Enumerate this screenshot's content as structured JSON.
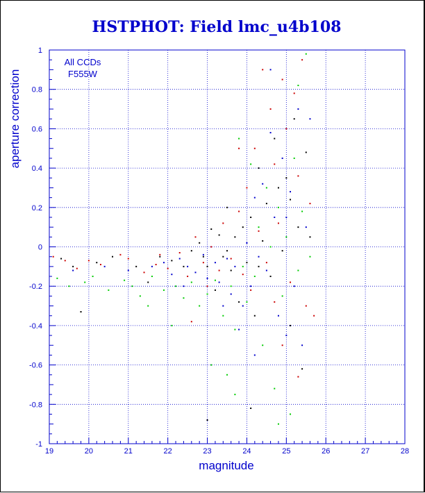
{
  "chart_data": {
    "type": "scatter",
    "title": "HSTPHOT: Field lmc_u4b108",
    "xlabel": "magnitude",
    "ylabel": "aperture correction",
    "xlim": [
      19,
      28
    ],
    "ylim": [
      -1,
      1
    ],
    "grid": true,
    "x_ticks": [
      "19",
      "20",
      "21",
      "22",
      "23",
      "24",
      "25",
      "26",
      "27",
      "28"
    ],
    "y_ticks": [
      "-1",
      "-0.8",
      "-0.6",
      "-0.4",
      "-0.2",
      "0",
      "0.2",
      "0.4",
      "0.6",
      "0.8",
      "1"
    ],
    "annotations": [
      "All CCDs",
      "F555W"
    ],
    "colors": {
      "axis": "#0000cc",
      "grid": "#0000cc",
      "points": [
        "#000000",
        "#cc0000",
        "#00cc00",
        "#0000cc"
      ]
    },
    "series": [
      {
        "color": "#000000",
        "points": [
          [
            19.3,
            -0.06
          ],
          [
            19.6,
            -0.1
          ],
          [
            19.8,
            -0.33
          ],
          [
            20.2,
            -0.08
          ],
          [
            20.6,
            -0.05
          ],
          [
            21.2,
            -0.1
          ],
          [
            21.5,
            -0.18
          ],
          [
            21.8,
            -0.05
          ],
          [
            22.1,
            -0.07
          ],
          [
            22.4,
            -0.1
          ],
          [
            22.6,
            -0.02
          ],
          [
            22.8,
            0.02
          ],
          [
            23.0,
            -0.1
          ],
          [
            23.1,
            0.09
          ],
          [
            23.2,
            -0.22
          ],
          [
            23.3,
            0.06
          ],
          [
            23.4,
            -0.05
          ],
          [
            23.5,
            0.2
          ],
          [
            23.6,
            -0.12
          ],
          [
            23.7,
            0.05
          ],
          [
            23.8,
            -0.28
          ],
          [
            23.9,
            0.1
          ],
          [
            24.0,
            -0.08
          ],
          [
            24.1,
            0.15
          ],
          [
            24.2,
            -0.35
          ],
          [
            24.3,
            0.4
          ],
          [
            24.4,
            0.03
          ],
          [
            24.5,
            0.22
          ],
          [
            24.6,
            -0.15
          ],
          [
            24.7,
            0.55
          ],
          [
            24.8,
            0.3
          ],
          [
            24.9,
            -0.02
          ],
          [
            25.0,
            0.35
          ],
          [
            25.1,
            -0.4
          ],
          [
            25.2,
            0.65
          ],
          [
            25.3,
            0.1
          ],
          [
            25.4,
            -0.62
          ],
          [
            25.5,
            0.48
          ],
          [
            23.0,
            -0.88
          ],
          [
            24.1,
            -0.82
          ],
          [
            22.9,
            -0.05
          ],
          [
            23.5,
            -0.02
          ],
          [
            24.3,
            -0.1
          ],
          [
            25.1,
            0.24
          ],
          [
            25.6,
            0.05
          ]
        ]
      },
      {
        "color": "#cc0000",
        "points": [
          [
            19.1,
            -0.05
          ],
          [
            19.4,
            -0.07
          ],
          [
            19.7,
            -0.11
          ],
          [
            20.0,
            -0.07
          ],
          [
            20.3,
            -0.09
          ],
          [
            20.8,
            -0.04
          ],
          [
            21.0,
            -0.06
          ],
          [
            21.4,
            -0.13
          ],
          [
            21.7,
            -0.09
          ],
          [
            22.0,
            -0.11
          ],
          [
            22.3,
            -0.03
          ],
          [
            22.5,
            -0.15
          ],
          [
            22.7,
            0.05
          ],
          [
            22.9,
            -0.08
          ],
          [
            23.1,
            0.0
          ],
          [
            23.3,
            -0.12
          ],
          [
            23.4,
            0.12
          ],
          [
            23.6,
            -0.06
          ],
          [
            23.8,
            0.18
          ],
          [
            23.9,
            -0.14
          ],
          [
            24.0,
            0.3
          ],
          [
            24.1,
            -0.22
          ],
          [
            24.2,
            0.5
          ],
          [
            24.3,
            0.08
          ],
          [
            24.4,
            0.9
          ],
          [
            24.5,
            -0.08
          ],
          [
            24.6,
            0.7
          ],
          [
            24.7,
            0.42
          ],
          [
            24.8,
            0.12
          ],
          [
            24.9,
            0.85
          ],
          [
            25.0,
            0.6
          ],
          [
            25.1,
            -0.18
          ],
          [
            25.2,
            0.78
          ],
          [
            25.3,
            0.36
          ],
          [
            25.4,
            0.95
          ],
          [
            25.5,
            -0.3
          ],
          [
            25.6,
            0.22
          ],
          [
            23.8,
            0.5
          ],
          [
            22.6,
            -0.38
          ],
          [
            24.9,
            -0.5
          ],
          [
            21.8,
            -0.04
          ],
          [
            23.0,
            -0.2
          ],
          [
            24.7,
            -0.28
          ],
          [
            25.3,
            -0.66
          ],
          [
            25.7,
            -0.35
          ]
        ]
      },
      {
        "color": "#00cc00",
        "points": [
          [
            19.2,
            -0.16
          ],
          [
            19.5,
            -0.2
          ],
          [
            19.9,
            -0.18
          ],
          [
            20.1,
            -0.15
          ],
          [
            20.5,
            -0.22
          ],
          [
            20.9,
            -0.17
          ],
          [
            21.1,
            -0.2
          ],
          [
            21.3,
            -0.25
          ],
          [
            21.6,
            -0.15
          ],
          [
            21.9,
            -0.22
          ],
          [
            22.2,
            -0.2
          ],
          [
            22.4,
            -0.26
          ],
          [
            22.6,
            -0.18
          ],
          [
            22.8,
            -0.3
          ],
          [
            23.0,
            -0.24
          ],
          [
            23.1,
            -0.6
          ],
          [
            23.2,
            -0.17
          ],
          [
            23.4,
            -0.35
          ],
          [
            23.5,
            -0.65
          ],
          [
            23.6,
            -0.2
          ],
          [
            23.7,
            -0.42
          ],
          [
            23.8,
            0.55
          ],
          [
            23.9,
            -0.1
          ],
          [
            24.0,
            -0.28
          ],
          [
            24.1,
            0.42
          ],
          [
            24.2,
            -0.15
          ],
          [
            24.3,
            0.1
          ],
          [
            24.4,
            -0.5
          ],
          [
            24.5,
            0.3
          ],
          [
            24.6,
            0.0
          ],
          [
            24.7,
            -0.72
          ],
          [
            24.8,
            0.2
          ],
          [
            24.9,
            -0.25
          ],
          [
            25.0,
            0.05
          ],
          [
            25.1,
            -0.85
          ],
          [
            25.2,
            0.45
          ],
          [
            25.3,
            -0.12
          ],
          [
            25.4,
            0.18
          ],
          [
            25.5,
            0.98
          ],
          [
            25.3,
            0.82
          ],
          [
            21.5,
            -0.3
          ],
          [
            22.1,
            -0.4
          ],
          [
            23.7,
            -0.75
          ],
          [
            24.8,
            -0.9
          ],
          [
            25.6,
            -0.05
          ]
        ]
      },
      {
        "color": "#0000cc",
        "points": [
          [
            19.6,
            -0.12
          ],
          [
            20.4,
            -0.1
          ],
          [
            21.0,
            -0.12
          ],
          [
            21.6,
            -0.1
          ],
          [
            21.9,
            -0.08
          ],
          [
            22.1,
            -0.14
          ],
          [
            22.3,
            -0.06
          ],
          [
            22.5,
            -0.1
          ],
          [
            22.7,
            -0.13
          ],
          [
            22.9,
            -0.04
          ],
          [
            23.0,
            -0.16
          ],
          [
            23.2,
            -0.08
          ],
          [
            23.3,
            -0.18
          ],
          [
            23.5,
            -0.06
          ],
          [
            23.6,
            -0.24
          ],
          [
            23.7,
            -0.1
          ],
          [
            23.9,
            -0.3
          ],
          [
            24.0,
            0.02
          ],
          [
            24.1,
            -0.2
          ],
          [
            24.2,
            0.25
          ],
          [
            24.3,
            -0.05
          ],
          [
            24.4,
            0.32
          ],
          [
            24.5,
            -0.12
          ],
          [
            24.6,
            0.58
          ],
          [
            24.7,
            0.15
          ],
          [
            24.8,
            -0.35
          ],
          [
            24.9,
            0.45
          ],
          [
            25.0,
            -0.45
          ],
          [
            25.1,
            0.28
          ],
          [
            25.2,
            -0.2
          ],
          [
            25.3,
            0.7
          ],
          [
            25.4,
            -0.5
          ],
          [
            25.5,
            0.1
          ],
          [
            25.6,
            0.65
          ],
          [
            23.4,
            -0.3
          ],
          [
            22.4,
            -0.2
          ],
          [
            24.6,
            0.9
          ],
          [
            25.0,
            0.15
          ],
          [
            23.8,
            -0.42
          ],
          [
            24.2,
            -0.55
          ]
        ]
      }
    ]
  }
}
